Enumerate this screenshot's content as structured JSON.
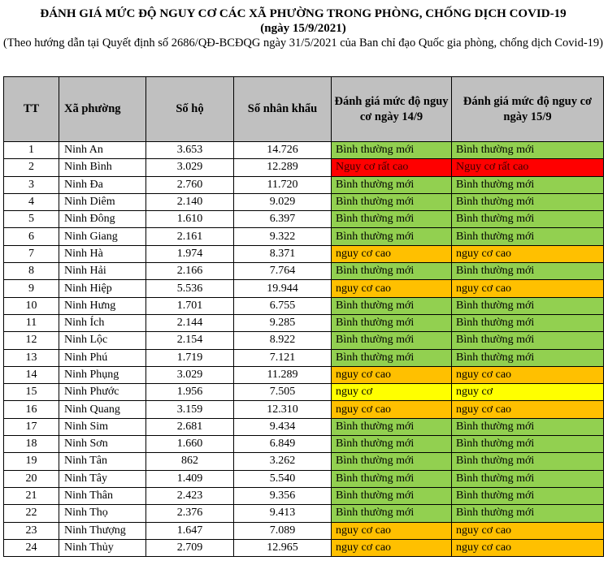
{
  "title": "ĐÁNH GIÁ MỨC ĐỘ NGUY CƠ CÁC XÃ PHƯỜNG TRONG PHÒNG, CHỐNG DỊCH COVID-19",
  "date": "(ngày 15/9/2021)",
  "note": "(Theo hướng dẫn tại Quyết định số 2686/QĐ-BCĐQG ngày 31/5/2021 của Ban chỉ đạo Quốc gia phòng, chống dịch Covid-19)",
  "headers": {
    "tt": "TT",
    "ward": "Xã phường",
    "households": "Số hộ",
    "population": "Số nhân khẩu",
    "risk_14": "Đánh giá mức độ nguy cơ ngày 14/9",
    "risk_15": "Đánh giá mức độ nguy cơ ngày 15/9"
  },
  "status_colors": {
    "Bình thường mới": "#92d050",
    "Nguy cơ rất cao": "#ff0000",
    "nguy cơ cao": "#ffc000",
    "nguy cơ": "#ffff00"
  },
  "rows": [
    {
      "tt": "1",
      "ward": "Ninh An",
      "households": "3.653",
      "population": "14.726",
      "risk_14": "Bình thường mới",
      "risk_15": "Bình thường mới"
    },
    {
      "tt": "2",
      "ward": "Ninh Bình",
      "households": "3.029",
      "population": "12.289",
      "risk_14": "Nguy cơ rất cao",
      "risk_15": "Nguy cơ rất cao"
    },
    {
      "tt": "3",
      "ward": "Ninh Đa",
      "households": "2.760",
      "population": "11.720",
      "risk_14": "Bình thường mới",
      "risk_15": "Bình thường mới"
    },
    {
      "tt": "4",
      "ward": "Ninh Diêm",
      "households": "2.140",
      "population": "9.029",
      "risk_14": "Bình thường mới",
      "risk_15": "Bình thường mới"
    },
    {
      "tt": "5",
      "ward": "Ninh Đông",
      "households": "1.610",
      "population": "6.397",
      "risk_14": "Bình thường mới",
      "risk_15": "Bình thường mới"
    },
    {
      "tt": "6",
      "ward": "Ninh Giang",
      "households": "2.161",
      "population": "9.322",
      "risk_14": "Bình thường mới",
      "risk_15": "Bình thường mới"
    },
    {
      "tt": "7",
      "ward": "Ninh Hà",
      "households": "1.974",
      "population": "8.371",
      "risk_14": "nguy cơ cao",
      "risk_15": "nguy cơ cao"
    },
    {
      "tt": "8",
      "ward": "Ninh Hải",
      "households": "2.166",
      "population": "7.764",
      "risk_14": "Bình thường mới",
      "risk_15": "Bình thường mới"
    },
    {
      "tt": "9",
      "ward": "Ninh Hiệp",
      "households": "5.536",
      "population": "19.944",
      "risk_14": "nguy cơ cao",
      "risk_15": "nguy cơ cao"
    },
    {
      "tt": "10",
      "ward": "Ninh Hưng",
      "households": "1.701",
      "population": "6.755",
      "risk_14": "Bình thường mới",
      "risk_15": "Bình thường mới"
    },
    {
      "tt": "11",
      "ward": "Ninh Ích",
      "households": "2.144",
      "population": "9.285",
      "risk_14": "Bình thường mới",
      "risk_15": "Bình thường mới"
    },
    {
      "tt": "12",
      "ward": "Ninh Lộc",
      "households": "2.154",
      "population": "8.922",
      "risk_14": "Bình thường mới",
      "risk_15": "Bình thường mới"
    },
    {
      "tt": "13",
      "ward": "Ninh Phú",
      "households": "1.719",
      "population": "7.121",
      "risk_14": "Bình thường mới",
      "risk_15": "Bình thường mới"
    },
    {
      "tt": "14",
      "ward": "Ninh Phụng",
      "households": "3.029",
      "population": "11.289",
      "risk_14": "nguy cơ cao",
      "risk_15": "nguy cơ cao"
    },
    {
      "tt": "15",
      "ward": "Ninh Phước",
      "households": "1.956",
      "population": "7.505",
      "risk_14": "nguy cơ",
      "risk_15": "nguy cơ"
    },
    {
      "tt": "16",
      "ward": "Ninh Quang",
      "households": "3.159",
      "population": "12.310",
      "risk_14": "nguy cơ cao",
      "risk_15": "nguy cơ cao"
    },
    {
      "tt": "17",
      "ward": "Ninh Sim",
      "households": "2.681",
      "population": "9.434",
      "risk_14": "Bình thường mới",
      "risk_15": "Bình thường mới"
    },
    {
      "tt": "18",
      "ward": "Ninh Sơn",
      "households": "1.660",
      "population": "6.849",
      "risk_14": "Bình thường mới",
      "risk_15": "Bình thường mới"
    },
    {
      "tt": "19",
      "ward": "Ninh Tân",
      "households": "862",
      "population": "3.262",
      "risk_14": "Bình thường mới",
      "risk_15": "Bình thường mới"
    },
    {
      "tt": "20",
      "ward": "Ninh Tây",
      "households": "1.409",
      "population": "5.540",
      "risk_14": "Bình thường mới",
      "risk_15": "Bình thường mới"
    },
    {
      "tt": "21",
      "ward": "Ninh Thân",
      "households": "2.423",
      "population": "9.356",
      "risk_14": "Bình thường mới",
      "risk_15": "Bình thường mới"
    },
    {
      "tt": "22",
      "ward": "Ninh Thọ",
      "households": "2.376",
      "population": "9.413",
      "risk_14": "Bình thường mới",
      "risk_15": "Bình thường mới"
    },
    {
      "tt": "23",
      "ward": "Ninh Thượng",
      "households": "1.647",
      "population": "7.089",
      "risk_14": "nguy cơ cao",
      "risk_15": "nguy cơ cao"
    },
    {
      "tt": "24",
      "ward": "Ninh Thủy",
      "households": "2.709",
      "population": "12.965",
      "risk_14": "nguy cơ cao",
      "risk_15": "nguy cơ cao"
    }
  ]
}
